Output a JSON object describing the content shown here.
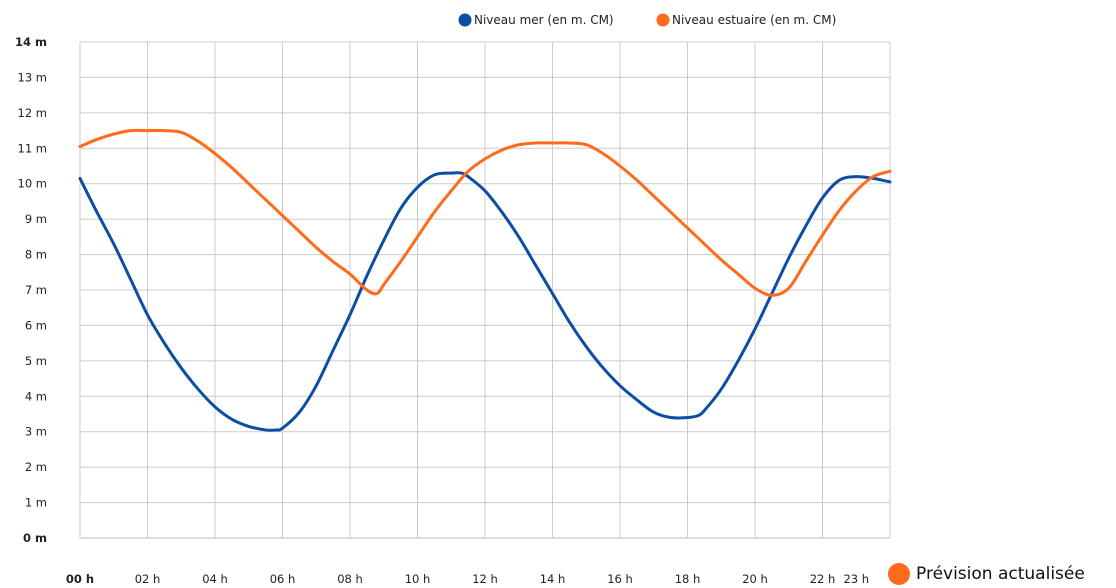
{
  "chart_data": {
    "type": "line",
    "title": "",
    "xlabel": "",
    "ylabel": "",
    "x_ticks": [
      "00 h",
      "02 h",
      "04 h",
      "06 h",
      "08 h",
      "10 h",
      "12 h",
      "14 h",
      "16 h",
      "18 h",
      "20 h",
      "22 h",
      "23 h"
    ],
    "y_ticks": [
      "0 m",
      "1 m",
      "2 m",
      "3 m",
      "4 m",
      "5 m",
      "6 m",
      "7 m",
      "8 m",
      "9 m",
      "10 m",
      "11 m",
      "12 m",
      "13 m",
      "14 m"
    ],
    "xlim": [
      0,
      24
    ],
    "ylim": [
      0,
      14
    ],
    "grid": true,
    "legend_position": "top-right",
    "series": [
      {
        "name": "Niveau mer (en m. CM)",
        "color": "#0b4ea2",
        "x": [
          0,
          0.5,
          1,
          1.5,
          2,
          2.5,
          3,
          3.5,
          4,
          4.5,
          5,
          5.5,
          5.8,
          6,
          6.5,
          7,
          7.5,
          8,
          8.5,
          9,
          9.5,
          10,
          10.5,
          11,
          11.3,
          11.5,
          12,
          12.5,
          13,
          13.5,
          14,
          14.5,
          15,
          15.5,
          16,
          16.5,
          17,
          17.5,
          18,
          18.3,
          18.5,
          19,
          19.5,
          20,
          20.5,
          21,
          21.5,
          22,
          22.5,
          23,
          23.5,
          24
        ],
        "y": [
          10.15,
          9.2,
          8.3,
          7.3,
          6.3,
          5.5,
          4.8,
          4.2,
          3.7,
          3.35,
          3.15,
          3.05,
          3.05,
          3.1,
          3.55,
          4.3,
          5.3,
          6.3,
          7.4,
          8.4,
          9.3,
          9.9,
          10.25,
          10.3,
          10.3,
          10.2,
          9.8,
          9.2,
          8.5,
          7.7,
          6.9,
          6.1,
          5.4,
          4.8,
          4.3,
          3.9,
          3.55,
          3.4,
          3.4,
          3.45,
          3.6,
          4.2,
          5.0,
          5.9,
          6.9,
          7.9,
          8.8,
          9.6,
          10.1,
          10.2,
          10.15,
          10.05
        ]
      },
      {
        "name": "Niveau estuaire (en m. CM)",
        "color": "#ff6b1a",
        "x": [
          0,
          0.5,
          1,
          1.5,
          2,
          2.5,
          3,
          3.5,
          4,
          4.5,
          5,
          5.5,
          6,
          6.5,
          7,
          7.5,
          8,
          8.5,
          8.8,
          9,
          9.5,
          10,
          10.5,
          11,
          11.5,
          12,
          12.5,
          13,
          13.5,
          14,
          14.5,
          15,
          15.5,
          16,
          16.5,
          17,
          17.5,
          18,
          18.5,
          19,
          19.5,
          20,
          20.5,
          21,
          21.5,
          22,
          22.5,
          23,
          23.5,
          24
        ],
        "y": [
          11.05,
          11.25,
          11.4,
          11.5,
          11.5,
          11.5,
          11.45,
          11.2,
          10.85,
          10.45,
          10.0,
          9.55,
          9.1,
          8.65,
          8.2,
          7.8,
          7.45,
          7.0,
          6.9,
          7.15,
          7.8,
          8.5,
          9.2,
          9.8,
          10.35,
          10.7,
          10.95,
          11.1,
          11.15,
          11.15,
          11.15,
          11.1,
          10.85,
          10.5,
          10.1,
          9.65,
          9.2,
          8.75,
          8.3,
          7.85,
          7.45,
          7.05,
          6.85,
          7.05,
          7.8,
          8.55,
          9.25,
          9.8,
          10.2,
          10.35
        ]
      }
    ]
  },
  "footer": {
    "label": "Prévision actualisée",
    "dot_color": "#ff6b1a"
  }
}
